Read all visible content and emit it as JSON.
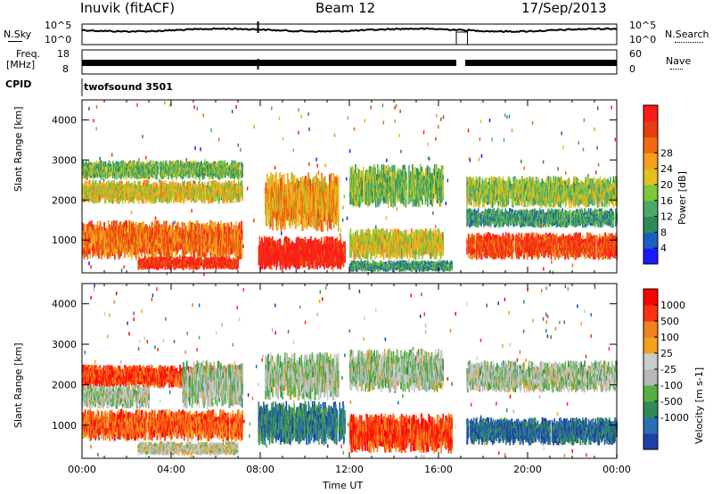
{
  "header": {
    "station": "Inuvik (fitACF)",
    "beam": "Beam 12",
    "date": "17/Sep/2013"
  },
  "top_panels": {
    "nsky_label": "N.Sky",
    "nsky_ticks": [
      "10^5",
      "10^0"
    ],
    "nsearch_label": "N.Search",
    "nsearch_ticks": [
      "10^5",
      "10^0"
    ],
    "freq_label_1": "Freq.",
    "freq_label_2": "[MHz]",
    "freq_ticks": [
      "18",
      "8"
    ],
    "nave_label": "Nave",
    "nave_ticks": [
      "60",
      "0"
    ],
    "cpid_label": "CPID",
    "cpid_value": "twofsound 3501"
  },
  "chart_data": [
    {
      "type": "heatmap",
      "name": "power-panel",
      "ylabel": "Slant Range [km]",
      "yticks": [
        "1000",
        "2000",
        "3000",
        "4000"
      ],
      "ylim": [
        180,
        4500
      ],
      "xlim_hours": [
        0,
        24
      ],
      "colorbar": {
        "label": "Power [dB]",
        "ticks": [
          "4",
          "8",
          "12",
          "16",
          "20",
          "24",
          "28"
        ],
        "colors": [
          "#1a1aff",
          "#1a5fbf",
          "#2e8b57",
          "#4ea86a",
          "#7ec83c",
          "#e6c020",
          "#f5a01a",
          "#f06a10",
          "#e83c10",
          "#ff1a1a"
        ]
      },
      "regions": [
        {
          "t": [
            0.0,
            7.2
          ],
          "r": [
            1900,
            2500
          ],
          "level": 0.55
        },
        {
          "t": [
            0.0,
            7.2
          ],
          "r": [
            500,
            1500
          ],
          "level": 0.75
        },
        {
          "t": [
            0.0,
            7.2
          ],
          "r": [
            2500,
            3000
          ],
          "level": 0.4
        },
        {
          "t": [
            2.5,
            7.0
          ],
          "r": [
            250,
            600
          ],
          "level": 0.9
        },
        {
          "t": [
            7.9,
            11.8
          ],
          "r": [
            250,
            1100
          ],
          "level": 0.95
        },
        {
          "t": [
            8.2,
            11.5
          ],
          "r": [
            1200,
            2700
          ],
          "level": 0.65
        },
        {
          "t": [
            12.0,
            16.2
          ],
          "r": [
            1800,
            2900
          ],
          "level": 0.4
        },
        {
          "t": [
            12.0,
            16.2
          ],
          "r": [
            500,
            1300
          ],
          "level": 0.55
        },
        {
          "t": [
            12.0,
            16.6
          ],
          "r": [
            200,
            500
          ],
          "level": 0.3
        },
        {
          "t": [
            17.2,
            24.0
          ],
          "r": [
            500,
            1200
          ],
          "level": 0.85
        },
        {
          "t": [
            17.2,
            24.0
          ],
          "r": [
            1800,
            2600
          ],
          "level": 0.45
        },
        {
          "t": [
            17.2,
            24.0
          ],
          "r": [
            1300,
            1800
          ],
          "level": 0.3
        }
      ]
    },
    {
      "type": "heatmap",
      "name": "velocity-panel",
      "ylabel": "Slant Range [km]",
      "yticks": [
        "1000",
        "2000",
        "3000",
        "4000"
      ],
      "ylim": [
        180,
        4500
      ],
      "xlabel": "Time UT",
      "xticks": [
        "00:00",
        "04:00",
        "08:00",
        "12:00",
        "16:00",
        "20:00",
        "00:00"
      ],
      "xlim_hours": [
        0,
        24
      ],
      "colorbar": {
        "label": "Velocity [m s-1]",
        "ticks": [
          "1000",
          "500",
          "100",
          "25",
          "-25",
          "-100",
          "-500",
          "-1000"
        ],
        "colors": [
          "#1f3fa8",
          "#2a6fb0",
          "#2e8b57",
          "#55b040",
          "#b8b8b8",
          "#cccccc",
          "#f5a01a",
          "#f08020",
          "#ff3010",
          "#ff0000"
        ]
      },
      "regions": [
        {
          "t": [
            0.0,
            7.2
          ],
          "r": [
            1900,
            2500
          ],
          "level": 0.85
        },
        {
          "t": [
            0.0,
            7.2
          ],
          "r": [
            600,
            1400
          ],
          "level": 0.8
        },
        {
          "t": [
            0.0,
            3.0
          ],
          "r": [
            1400,
            2000
          ],
          "level": 0.45
        },
        {
          "t": [
            2.5,
            7.0
          ],
          "r": [
            250,
            600
          ],
          "level": 0.5
        },
        {
          "t": [
            4.5,
            7.2
          ],
          "r": [
            1400,
            2600
          ],
          "level": 0.45
        },
        {
          "t": [
            7.9,
            11.8
          ],
          "r": [
            500,
            1600
          ],
          "level": 0.2
        },
        {
          "t": [
            8.2,
            11.5
          ],
          "r": [
            1600,
            2800
          ],
          "level": 0.45
        },
        {
          "t": [
            12.0,
            16.6
          ],
          "r": [
            300,
            1300
          ],
          "level": 0.85
        },
        {
          "t": [
            12.0,
            16.2
          ],
          "r": [
            1800,
            2900
          ],
          "level": 0.45
        },
        {
          "t": [
            17.2,
            24.0
          ],
          "r": [
            500,
            1200
          ],
          "level": 0.15
        },
        {
          "t": [
            17.2,
            24.0
          ],
          "r": [
            1800,
            2600
          ],
          "level": 0.45
        }
      ]
    }
  ]
}
